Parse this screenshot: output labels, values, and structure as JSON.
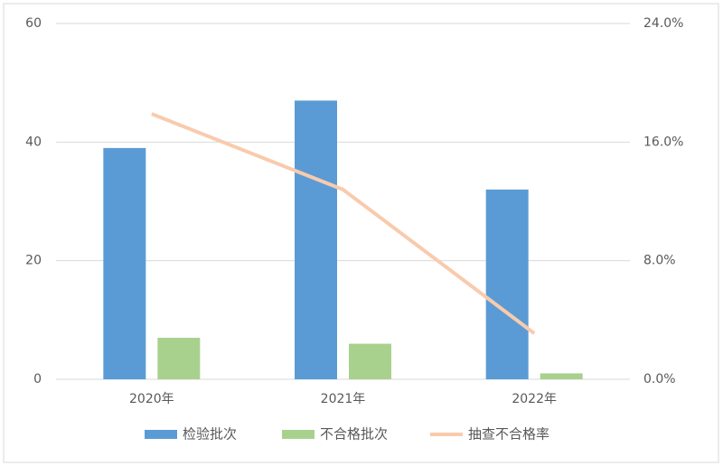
{
  "chart_data": {
    "type": "bar",
    "categories": [
      "2020年",
      "2021年",
      "2022年"
    ],
    "series": [
      {
        "name": "检验批次",
        "color": "#5b9bd5",
        "type": "bar",
        "values": [
          39,
          47,
          32
        ]
      },
      {
        "name": "不合格批次",
        "color": "#a9d18e",
        "type": "bar",
        "values": [
          7,
          6,
          1
        ]
      },
      {
        "name": "抽查不合格率",
        "color": "#f8cbad",
        "type": "line",
        "axis": "y2",
        "values": [
          17.9,
          12.8,
          3.1
        ]
      }
    ],
    "ylim": [
      0,
      60
    ],
    "yticks": [
      0,
      20,
      40,
      60
    ],
    "y2lim": [
      0,
      24
    ],
    "y2ticks": [
      {
        "value": 0,
        "label": "0.0%"
      },
      {
        "value": 8,
        "label": "8.0%"
      },
      {
        "value": 16,
        "label": "16.0%"
      },
      {
        "value": 24,
        "label": "24.0%"
      }
    ],
    "grid": true,
    "legend": "bottom"
  }
}
